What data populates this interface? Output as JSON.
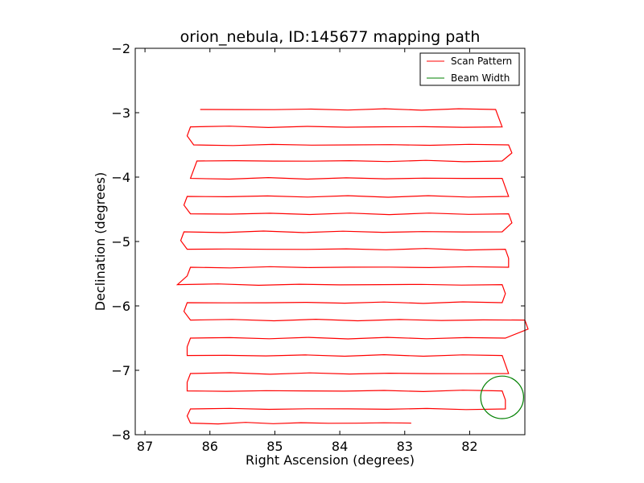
{
  "chart_data": {
    "type": "line",
    "title": "orion_nebula, ID:145677 mapping path",
    "xlabel": "Right Ascension (degrees)",
    "ylabel": "Declination (degrees)",
    "xlim": [
      87.15,
      81.15
    ],
    "ylim": [
      -8,
      -2
    ],
    "xticks": [
      87,
      86,
      85,
      84,
      83,
      82
    ],
    "xtick_labels": [
      "87",
      "86",
      "85",
      "84",
      "83",
      "82"
    ],
    "yticks": [
      -2,
      -3,
      -4,
      -5,
      -6,
      -7,
      -8
    ],
    "ytick_labels": [
      "−2",
      "−3",
      "−4",
      "−5",
      "−6",
      "−7",
      "−8"
    ],
    "legend": {
      "position": "top-right",
      "entries": [
        {
          "label": "Scan Pattern",
          "color": "#ff0000"
        },
        {
          "label": "Beam Width",
          "color": "#008000"
        }
      ]
    },
    "scan_pattern": {
      "color": "#ff0000",
      "rows": [
        {
          "dec": -2.95,
          "ra_east": 86.15,
          "ra_west": 81.6
        },
        {
          "dec": -3.22,
          "ra_east": 86.3,
          "ra_west": 81.5
        },
        {
          "dec": -3.5,
          "ra_east": 86.25,
          "ra_west": 81.4
        },
        {
          "dec": -3.75,
          "ra_east": 86.2,
          "ra_west": 81.5
        },
        {
          "dec": -4.02,
          "ra_east": 86.3,
          "ra_west": 81.5
        },
        {
          "dec": -4.3,
          "ra_east": 86.35,
          "ra_west": 81.4
        },
        {
          "dec": -4.57,
          "ra_east": 86.3,
          "ra_west": 81.4
        },
        {
          "dec": -4.85,
          "ra_east": 86.4,
          "ra_west": 81.5
        },
        {
          "dec": -5.12,
          "ra_east": 86.35,
          "ra_west": 81.45
        },
        {
          "dec": -5.4,
          "ra_east": 86.3,
          "ra_west": 81.4
        },
        {
          "dec": -5.67,
          "ra_east": 86.5,
          "ra_west": 81.5
        },
        {
          "dec": -5.95,
          "ra_east": 86.35,
          "ra_west": 81.5
        },
        {
          "dec": -6.22,
          "ra_east": 86.3,
          "ra_west": 81.15
        },
        {
          "dec": -6.5,
          "ra_east": 86.3,
          "ra_west": 81.45
        },
        {
          "dec": -6.77,
          "ra_east": 86.35,
          "ra_west": 81.5
        },
        {
          "dec": -7.05,
          "ra_east": 86.3,
          "ra_west": 81.4
        },
        {
          "dec": -7.32,
          "ra_east": 86.35,
          "ra_west": 81.5
        },
        {
          "dec": -7.6,
          "ra_east": 86.3,
          "ra_west": 81.45
        },
        {
          "dec": -7.82,
          "ra_east": 86.3,
          "ra_west": 82.9
        }
      ],
      "first_row_extra_west_sweep": -3.2,
      "last_row_end_ra": 82.9
    },
    "beam_width": {
      "color": "#008000",
      "center_ra": 81.5,
      "center_dec": -7.42,
      "radius_deg": 0.33
    }
  }
}
